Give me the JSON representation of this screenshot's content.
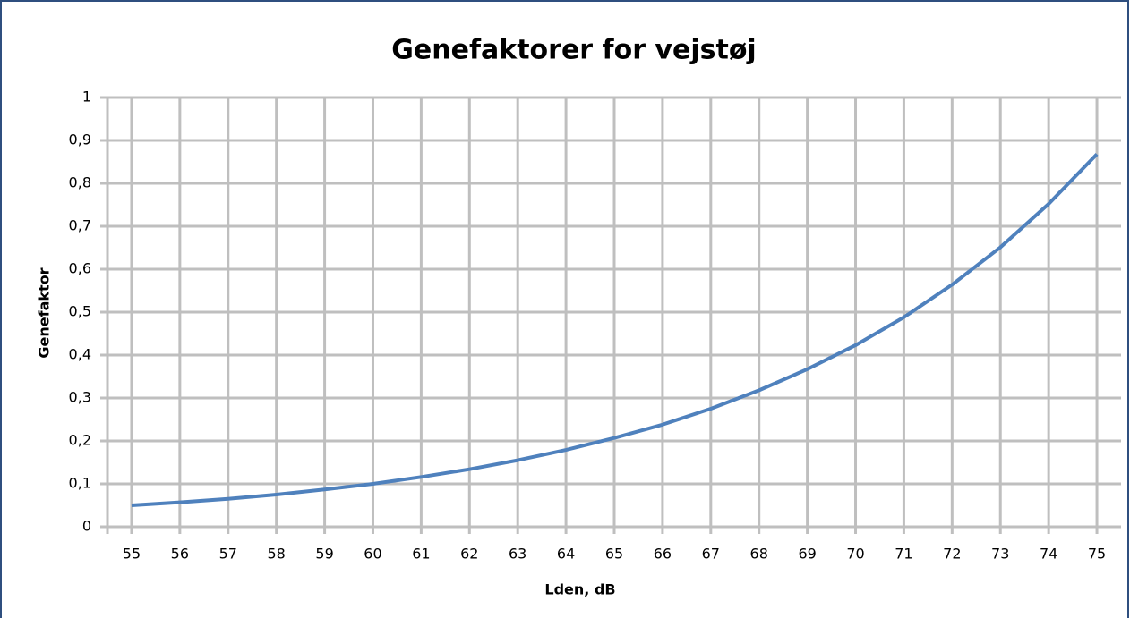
{
  "chart_data": {
    "type": "line",
    "title": "Genefaktorer for vejstøj",
    "xlabel": "Lden, dB",
    "ylabel": "Genefaktor",
    "x": [
      55,
      56,
      57,
      58,
      59,
      60,
      61,
      62,
      63,
      64,
      65,
      66,
      67,
      68,
      69,
      70,
      71,
      72,
      73,
      74,
      75
    ],
    "series": [
      {
        "name": "Genefaktor",
        "color": "#4f81bd",
        "values": [
          0.05,
          0.057,
          0.065,
          0.075,
          0.087,
          0.1,
          0.116,
          0.134,
          0.155,
          0.179,
          0.207,
          0.238,
          0.275,
          0.318,
          0.367,
          0.423,
          0.488,
          0.564,
          0.651,
          0.752,
          0.868
        ]
      }
    ],
    "xlim": [
      54.5,
      75.5
    ],
    "xticks": [
      55,
      56,
      57,
      58,
      59,
      60,
      61,
      62,
      63,
      64,
      65,
      66,
      67,
      68,
      69,
      70,
      71,
      72,
      73,
      74,
      75
    ],
    "ylim": [
      0,
      1
    ],
    "yticks": [
      0,
      {
        "value": 0.1,
        "label": "0,1"
      },
      {
        "value": 0.2,
        "label": "0,2"
      },
      {
        "value": 0.3,
        "label": "0,3"
      },
      {
        "value": 0.4,
        "label": "0,4"
      },
      {
        "value": 0.5,
        "label": "0,5"
      },
      {
        "value": 0.6,
        "label": "0,6"
      },
      {
        "value": 0.7,
        "label": "0,7"
      },
      {
        "value": 0.8,
        "label": "0,8"
      },
      {
        "value": 0.9,
        "label": "0,9"
      },
      1
    ],
    "grid": true
  }
}
